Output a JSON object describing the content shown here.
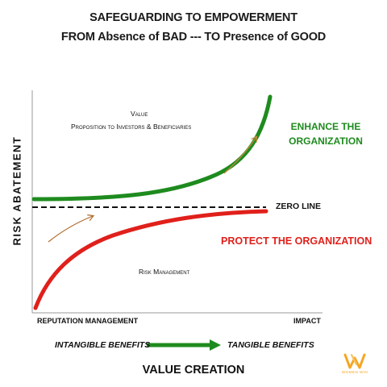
{
  "header": {
    "title_line1": "SAFEGUARDING TO EMPOWERMENT",
    "title_line2": "FROM Absence of BAD --- TO Presence of GOOD"
  },
  "axes": {
    "y_title": "RISK ABATEMENT",
    "x_left_label": "REPUTATION MANAGEMENT",
    "x_right_label": "IMPACT"
  },
  "upper_area": {
    "line1": "Value",
    "line2": "Proposition to Investors &  Beneficiaries"
  },
  "lower_area": {
    "label": "Risk Management"
  },
  "zero_line": {
    "label": "ZERO LINE"
  },
  "enhance": {
    "line1": "ENHANCE THE",
    "line2": "ORGANIZATION",
    "color": "#1e8b1e"
  },
  "protect": {
    "label": "PROTECT THE ORGANIZATION",
    "color": "#e0201b"
  },
  "benefits": {
    "left": "INTANGIBLE BENEFITS",
    "right": "TANGIBLE BENEFITS"
  },
  "footer": {
    "title": "VALUE CREATION"
  },
  "logo": {
    "icon": "ww-logo-icon",
    "text": "WOMEN WIN",
    "color": "#f5a623"
  }
}
